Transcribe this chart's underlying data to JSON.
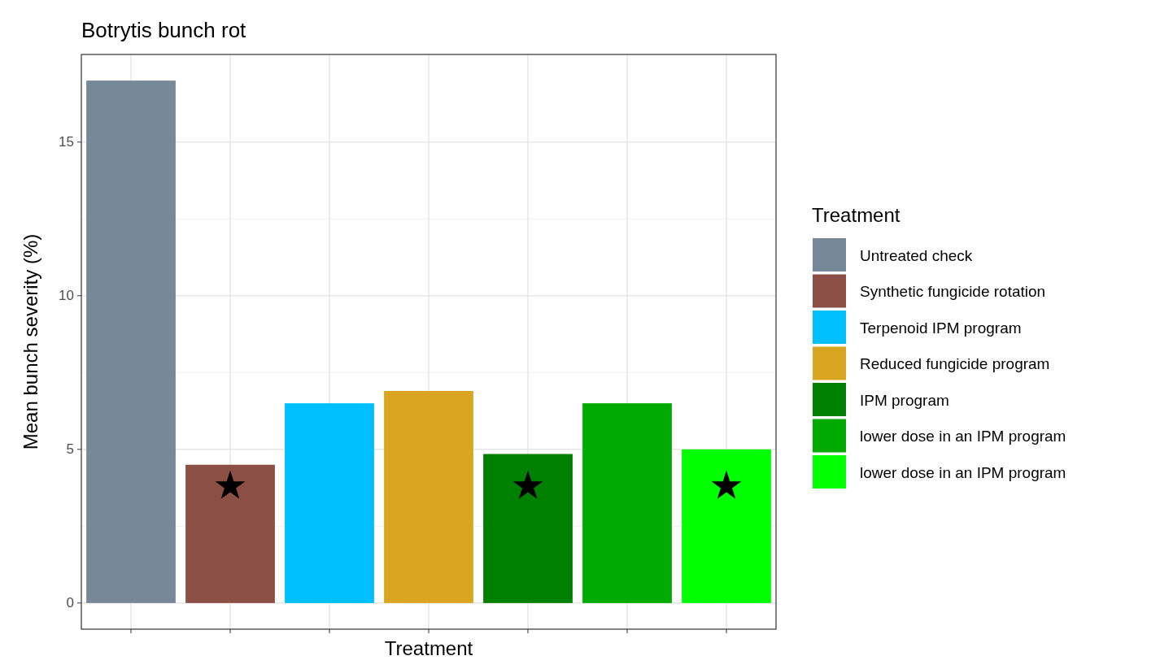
{
  "chart_data": {
    "type": "bar",
    "title": "Botrytis bunch rot",
    "xlabel": "Treatment",
    "ylabel": "Mean bunch severity (%)",
    "legend_title": "Treatment",
    "categories": [
      null,
      null,
      null,
      null,
      null,
      null,
      null
    ],
    "series": [
      {
        "name": "Untreated check",
        "color": "#778899",
        "values": [
          17.0,
          null,
          null,
          null,
          null,
          null,
          null
        ]
      },
      {
        "name": "Synthetic fungicide rotation",
        "color": "#8b4f46",
        "values": [
          null,
          4.5,
          null,
          null,
          null,
          null,
          null
        ]
      },
      {
        "name": "Terpenoid IPM program",
        "color": "#00bfff",
        "values": [
          null,
          null,
          6.5,
          null,
          null,
          null,
          null
        ]
      },
      {
        "name": "Reduced fungicide program",
        "color": "#daa520",
        "values": [
          null,
          null,
          null,
          6.9,
          null,
          null,
          null
        ]
      },
      {
        "name": "IPM program",
        "color": "#008000",
        "values": [
          null,
          null,
          null,
          null,
          4.85,
          null,
          null
        ]
      },
      {
        "name": "lower dose in an IPM program",
        "color": "#00aa00",
        "values": [
          null,
          null,
          null,
          null,
          null,
          6.5,
          null
        ]
      },
      {
        "name": "lower dose in an IPM program",
        "color": "#00ff00",
        "values": [
          null,
          null,
          null,
          null,
          null,
          null,
          5.0
        ]
      },
      {
        "type": "scatter",
        "marker": "star",
        "color": "#000000",
        "values": [
          null,
          3.8,
          null,
          null,
          3.8,
          null,
          3.8
        ]
      }
    ],
    "ylim": [
      -0.85,
      17.85
    ],
    "yticks": [
      0,
      5,
      10,
      15
    ],
    "grid": true,
    "legend": "right"
  }
}
